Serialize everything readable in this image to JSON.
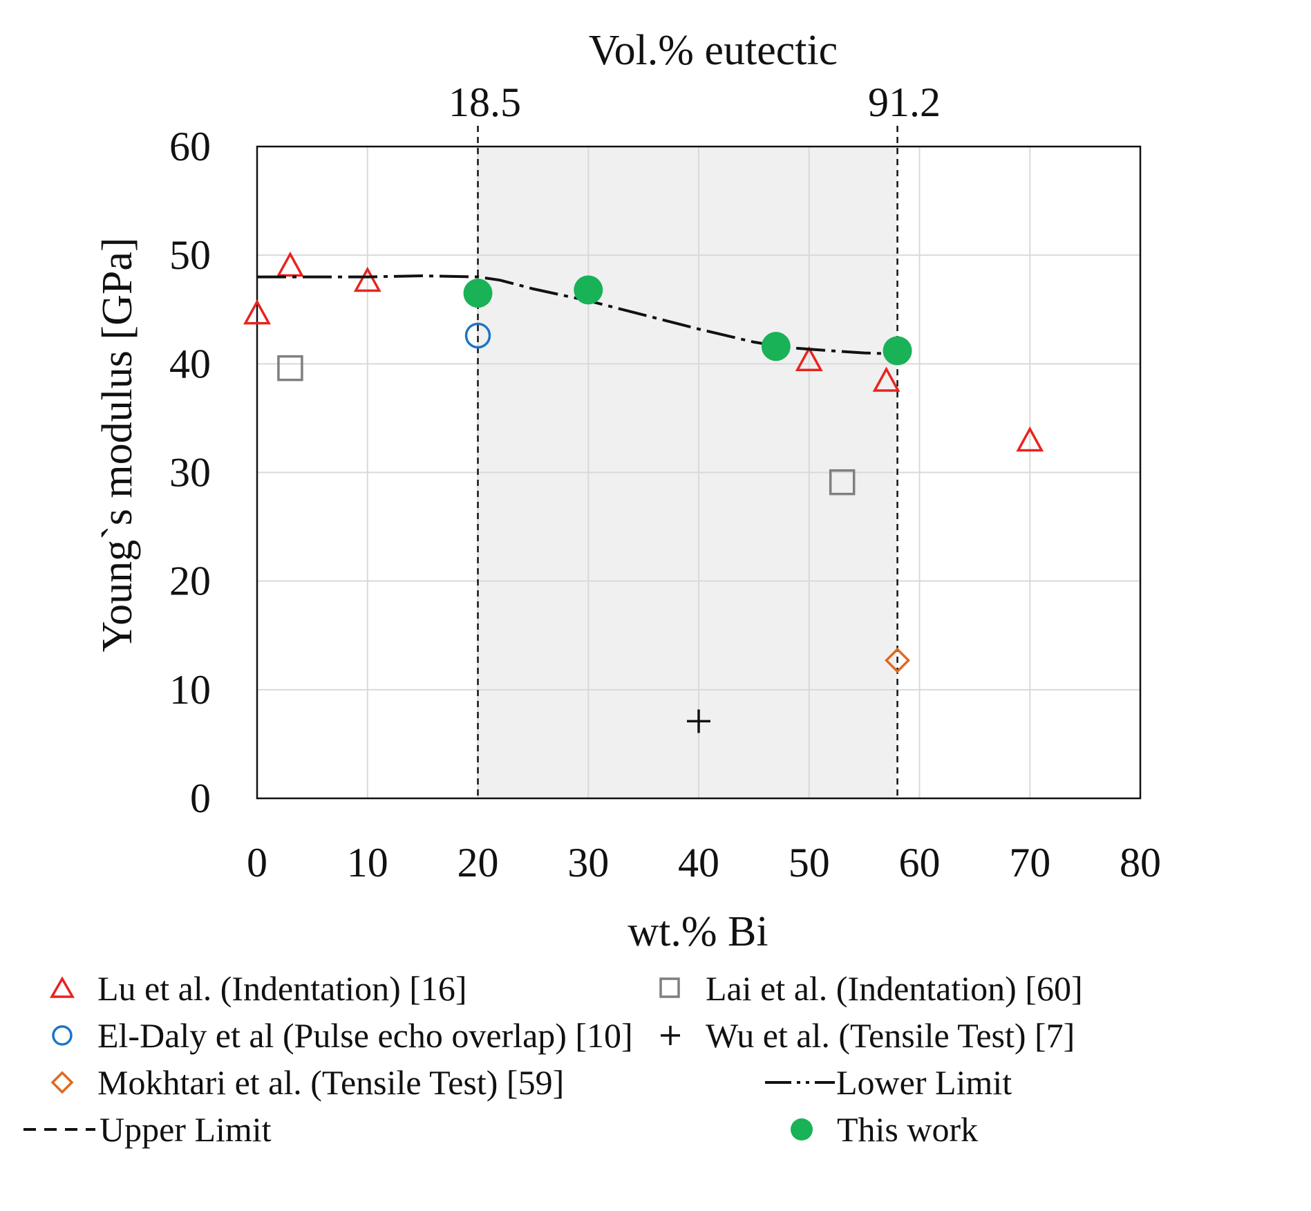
{
  "chart_data": {
    "type": "scatter",
    "xlabel": "wt.% Bi",
    "ylabel": "Young`s modulus [GPa]",
    "top_axis_label": "Vol.% eutectic",
    "xlim": [
      0,
      80
    ],
    "ylim": [
      0,
      60
    ],
    "x_ticks": [
      "0",
      "10",
      "20",
      "30",
      "40",
      "50",
      "60",
      "70",
      "80"
    ],
    "y_ticks": [
      "0",
      "10",
      "20",
      "30",
      "40",
      "50",
      "60"
    ],
    "top_markers": [
      {
        "label": "18.5",
        "x": 20
      },
      {
        "label": "91.2",
        "x": 58
      }
    ],
    "shaded_region": [
      20,
      58
    ],
    "grid": true,
    "series": [
      {
        "name": "Lu et al. (Indentation) [16]",
        "marker": "triangle",
        "color": "#e8231e",
        "points": [
          [
            0,
            44.5
          ],
          [
            3,
            48.9
          ],
          [
            10,
            47.5
          ],
          [
            50,
            40.2
          ],
          [
            57,
            38.3
          ],
          [
            70,
            32.8
          ]
        ]
      },
      {
        "name": "Lai et al. (Indentation) [60]",
        "marker": "square",
        "color": "#7f7f7f",
        "points": [
          [
            3,
            39.6
          ],
          [
            53,
            29.1
          ]
        ]
      },
      {
        "name": "El-Daly et al (Pulse echo overlap) [10]",
        "marker": "circle",
        "color": "#1a75c8",
        "points": [
          [
            20,
            42.6
          ]
        ]
      },
      {
        "name": "Wu et al. (Tensile Test) [7]",
        "marker": "plus",
        "color": "#111111",
        "points": [
          [
            40,
            7.1
          ]
        ]
      },
      {
        "name": "Mokhtari et al. (Tensile Test) [59]",
        "marker": "diamond",
        "color": "#e0691c",
        "points": [
          [
            58,
            12.7
          ]
        ]
      },
      {
        "name": "Lower Limit",
        "marker": "dashdot-line",
        "color": "#111111",
        "points": [
          [
            0,
            48
          ],
          [
            5,
            48
          ],
          [
            10,
            48
          ],
          [
            15,
            48.1
          ],
          [
            20,
            48
          ],
          [
            22,
            47.7
          ],
          [
            25,
            46.9
          ],
          [
            30,
            45.8
          ],
          [
            35,
            44.5
          ],
          [
            40,
            43.2
          ],
          [
            45,
            42.0
          ],
          [
            48,
            41.5
          ],
          [
            52,
            41.2
          ],
          [
            55,
            41.0
          ],
          [
            58,
            40.9
          ]
        ]
      },
      {
        "name": "Upper Limit",
        "marker": "dashed-line",
        "color": "#111111",
        "points": [
          [
            20,
            0
          ],
          [
            20,
            60
          ],
          [
            58,
            0
          ],
          [
            58,
            60
          ]
        ]
      },
      {
        "name": "This work",
        "marker": "filled-circle",
        "color": "#19b257",
        "points": [
          [
            20,
            46.5
          ],
          [
            30,
            46.8
          ],
          [
            47,
            41.6
          ],
          [
            58,
            41.2
          ]
        ]
      }
    ],
    "legend_position": "bottom"
  },
  "legend": {
    "items": [
      {
        "key": "lu",
        "label": "Lu et al. (Indentation) [16]"
      },
      {
        "key": "lai",
        "label": "Lai et al. (Indentation) [60]"
      },
      {
        "key": "eldaly",
        "label": "El-Daly et al (Pulse echo overlap) [10]"
      },
      {
        "key": "wu",
        "label": "Wu et al. (Tensile Test) [7]"
      },
      {
        "key": "mokhtari",
        "label": "Mokhtari et al. (Tensile Test) [59]"
      },
      {
        "key": "lower",
        "label": "Lower Limit"
      },
      {
        "key": "upper",
        "label": "Upper Limit"
      },
      {
        "key": "thiswork",
        "label": "This work"
      }
    ]
  },
  "colors": {
    "shade": "#f0f0f0",
    "grid": "#d9d9d9",
    "axis": "#111111"
  }
}
